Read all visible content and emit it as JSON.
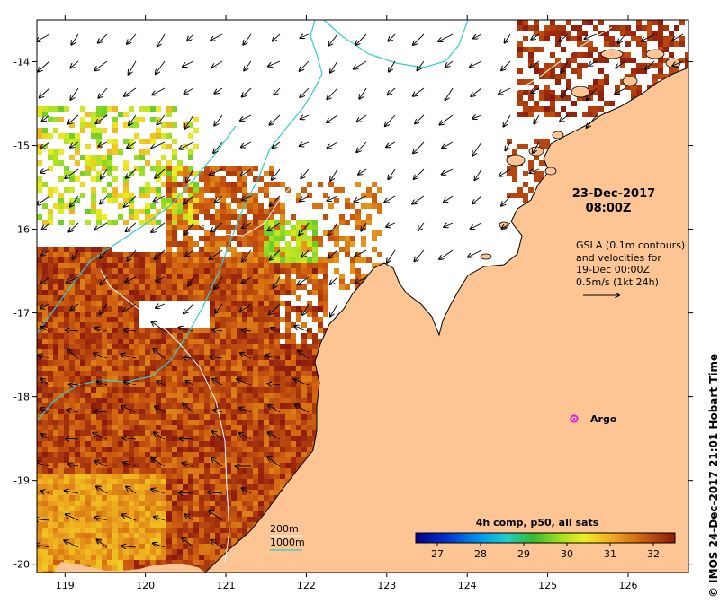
{
  "map": {
    "timestamp": {
      "date": "23-Dec-2017",
      "time": "08:00Z"
    },
    "velocity_note": {
      "lines": [
        "GSLA (0.1m contours)",
        "and velocities for",
        "19-Dec 00:00Z",
        "0.5m/s (1kt 24h)"
      ]
    },
    "argo_label": "Argo",
    "credit": "©  IMOS 24-Dec-2017 21:01 Hobart Time",
    "isobaths": {
      "shallow": {
        "label": "200m",
        "color": "#ffffff"
      },
      "deep": {
        "label": "1000m",
        "color": "#33cccc"
      }
    },
    "longitude_ticks": [
      "119",
      "120",
      "121",
      "122",
      "123",
      "124",
      "125",
      "126"
    ],
    "latitude_ticks": [
      "-14",
      "-15",
      "-16",
      "-17",
      "-18",
      "-19",
      "-20"
    ],
    "colorbar": {
      "title": "4h comp, p50, all sats",
      "tick_labels": [
        "27",
        "28",
        "29",
        "30",
        "31",
        "32"
      ],
      "min": 26.5,
      "max": 32.5
    },
    "colors": {
      "land": "#fdc593",
      "no_data": "#ffffff",
      "argo_marker": "#dd22dd",
      "coastline": "#000000"
    }
  }
}
